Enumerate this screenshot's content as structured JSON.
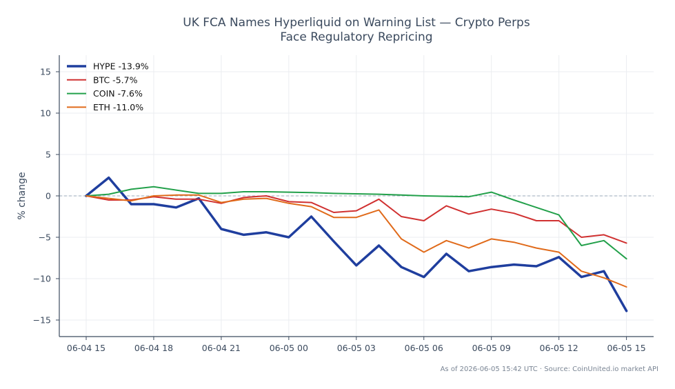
{
  "chart_data": {
    "type": "line",
    "title_line1": "UK FCA Names Hyperliquid on Warning List — Crypto Perps",
    "title_line2": "Face Regulatory Repricing",
    "ylabel": "% change",
    "xlabel": "",
    "ylim": [
      -17,
      17
    ],
    "yticks": [
      -15,
      -10,
      -5,
      0,
      5,
      10,
      15
    ],
    "ytick_labels": [
      "−15",
      "−10",
      "−5",
      "0",
      "5",
      "10",
      "15"
    ],
    "x": [
      "06-04 15:00",
      "06-04 16:00",
      "06-04 17:00",
      "06-04 18:00",
      "06-04 19:00",
      "06-04 20:00",
      "06-04 21:00",
      "06-04 22:00",
      "06-04 23:00",
      "06-05 00:00",
      "06-05 01:00",
      "06-05 02:00",
      "06-05 03:00",
      "06-05 04:00",
      "06-05 05:00",
      "06-05 06:00",
      "06-05 07:00",
      "06-05 08:00",
      "06-05 09:00",
      "06-05 10:00",
      "06-05 11:00",
      "06-05 12:00",
      "06-05 13:00",
      "06-05 14:00",
      "06-05 15:00"
    ],
    "xtick_positions": [
      0,
      3,
      6,
      9,
      12,
      15,
      18,
      21,
      24
    ],
    "xtick_labels": [
      "06-04 15",
      "06-04 18",
      "06-04 21",
      "06-05 00",
      "06-05 03",
      "06-05 06",
      "06-05 09",
      "06-05 12",
      "06-05 15"
    ],
    "grid": true,
    "zero_line": true,
    "legend_position": "top-left",
    "series": [
      {
        "name": "HYPE -13.9%",
        "color": "#1f3e9e",
        "width": 3.5,
        "values": [
          0,
          2.2,
          -1.0,
          -1.0,
          -1.4,
          -0.3,
          -4.0,
          -4.7,
          -4.4,
          -5.0,
          -2.5,
          -5.5,
          -8.4,
          -6.0,
          -8.6,
          -9.8,
          -7.0,
          -9.1,
          -8.6,
          -8.3,
          -8.5,
          -7.4,
          -9.8,
          -9.1,
          -13.9
        ]
      },
      {
        "name": "BTC -5.7%",
        "color": "#d03030",
        "width": 2,
        "values": [
          0,
          -0.5,
          -0.5,
          -0.1,
          -0.4,
          -0.4,
          -0.9,
          -0.2,
          0,
          -0.7,
          -0.8,
          -2.0,
          -1.8,
          -0.4,
          -2.5,
          -3.0,
          -1.2,
          -2.2,
          -1.6,
          -2.1,
          -3.0,
          -3.0,
          -5.0,
          -4.7,
          -5.7
        ]
      },
      {
        "name": "COIN -7.6%",
        "color": "#22a04a",
        "width": 2,
        "values": [
          0,
          0.2,
          0.8,
          1.1,
          0.7,
          0.3,
          0.3,
          0.5,
          0.5,
          0.45,
          0.4,
          0.3,
          0.25,
          0.2,
          0.1,
          0.0,
          -0.05,
          -0.1,
          0.45,
          -0.5,
          -1.4,
          -2.3,
          -6.0,
          -5.4,
          -7.6
        ]
      },
      {
        "name": "ETH -11.0%",
        "color": "#e06a1a",
        "width": 2,
        "values": [
          0,
          -0.3,
          -0.6,
          0.0,
          0.1,
          0.1,
          -0.8,
          -0.4,
          -0.3,
          -0.9,
          -1.3,
          -2.6,
          -2.6,
          -1.7,
          -5.2,
          -6.8,
          -5.4,
          -6.3,
          -5.2,
          -5.6,
          -6.3,
          -6.8,
          -9.1,
          -9.9,
          -11.0
        ]
      }
    ],
    "source_note": "As of 2026-06-05 15:42 UTC · Source: CoinUnited.io market API"
  },
  "colors": {
    "axis": "#3b4a5e",
    "grid": "#ebedf0",
    "zero_line": "#9aa8ba"
  }
}
